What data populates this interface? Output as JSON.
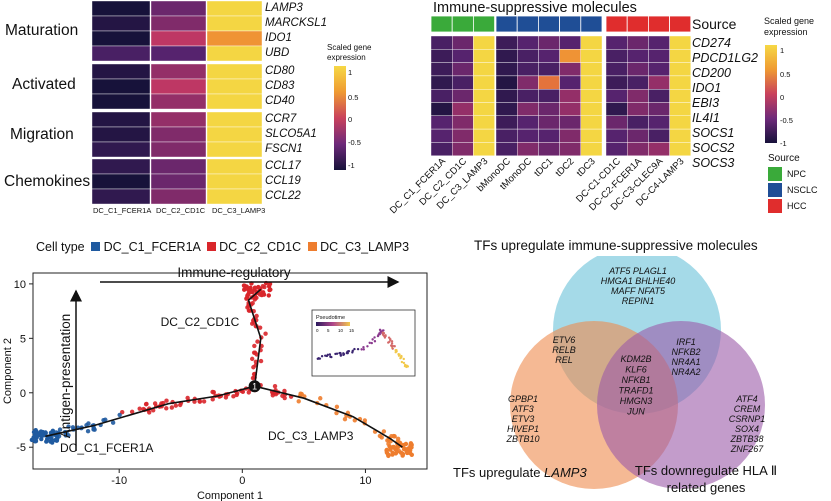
{
  "heatmap_left": {
    "groups": [
      {
        "label": "Maturation",
        "genes": [
          "LAMP3",
          "MARCKSL1",
          "IDO1",
          "UBD"
        ]
      },
      {
        "label": "Activated",
        "genes": [
          "CD80",
          "CD83",
          "CD40"
        ]
      },
      {
        "label": "Migration",
        "genes": [
          "CCR7",
          "SLCO5A1",
          "FSCN1"
        ]
      },
      {
        "label": "Chemokines",
        "genes": [
          "CCL17",
          "CCL19",
          "CCL22"
        ]
      }
    ],
    "columns": [
      "DC_C1_FCER1A",
      "DC_C2_CD1C",
      "DC_C3_LAMP3"
    ],
    "values": [
      [
        -1.0,
        -0.4,
        1.0
      ],
      [
        -0.9,
        -0.3,
        1.0
      ],
      [
        -1.0,
        0.0,
        0.6
      ],
      [
        -0.6,
        -0.5,
        1.0
      ],
      [
        -0.9,
        -0.2,
        1.0
      ],
      [
        -1.0,
        0.0,
        1.0
      ],
      [
        -1.0,
        -0.2,
        1.0
      ],
      [
        -0.9,
        -0.2,
        1.0
      ],
      [
        -0.9,
        -0.3,
        1.0
      ],
      [
        -0.8,
        -0.3,
        1.0
      ],
      [
        -0.8,
        -0.4,
        1.0
      ],
      [
        -1.0,
        -0.4,
        1.0
      ],
      [
        -0.8,
        -0.3,
        1.0
      ]
    ]
  },
  "legend_left": {
    "title": "Scaled gene expression",
    "ticks": [
      "1",
      "0.5",
      "0",
      "-0.5",
      "-1"
    ]
  },
  "heatmap_right": {
    "title": "Immune-suppressive molecules",
    "source_label": "Source",
    "genes": [
      "CD274",
      "PDCD1LG2",
      "CD200",
      "IDO1",
      "EBI3",
      "IL4I1",
      "SOCS1",
      "SOCS2",
      "SOCS3"
    ],
    "columns": [
      "DC_C1_FCER1A",
      "DC_C2_CD1C",
      "DC_C3_LAMP3",
      "bMonoDC",
      "tMonoDC",
      "tDC1",
      "tDC2",
      "tDC3",
      "DC-C1-CD1C",
      "DC-C2-FCER1A",
      "DC-C3-CLEC9A",
      "DC-C4-LAMP3"
    ],
    "column_sources": [
      "NPC",
      "NPC",
      "NPC",
      "NSCLC",
      "NSCLC",
      "NSCLC",
      "NSCLC",
      "NSCLC",
      "HCC",
      "HCC",
      "HCC",
      "HCC"
    ],
    "values": [
      [
        -0.6,
        -0.4,
        1.0,
        -0.7,
        -0.5,
        -0.4,
        -0.5,
        1.0,
        -0.5,
        -0.4,
        -0.5,
        1.0
      ],
      [
        -0.7,
        -0.5,
        1.0,
        -0.8,
        -0.6,
        -0.5,
        0.6,
        1.0,
        -0.6,
        -0.5,
        -0.5,
        1.0
      ],
      [
        -0.7,
        -0.4,
        1.0,
        -0.8,
        -0.6,
        -0.6,
        -0.3,
        1.0,
        -0.6,
        -0.4,
        -0.5,
        1.0
      ],
      [
        -0.8,
        -0.6,
        1.0,
        -0.9,
        -0.3,
        0.4,
        -0.5,
        1.0,
        -0.7,
        -0.6,
        -0.2,
        1.0
      ],
      [
        -0.6,
        -0.4,
        1.0,
        -0.8,
        -0.6,
        -0.6,
        -0.2,
        1.0,
        -0.5,
        -0.3,
        -0.6,
        1.0
      ],
      [
        -0.9,
        -0.2,
        1.0,
        -0.8,
        -0.3,
        -0.4,
        -0.2,
        1.0,
        -0.8,
        -0.3,
        -0.4,
        1.0
      ],
      [
        -0.5,
        -0.3,
        1.0,
        -0.7,
        -0.5,
        -0.4,
        -0.4,
        1.0,
        -0.4,
        -0.6,
        -0.5,
        1.0
      ],
      [
        -0.5,
        -0.3,
        1.0,
        -0.6,
        -0.5,
        -0.5,
        -0.3,
        1.0,
        -0.5,
        -0.4,
        -0.6,
        1.0
      ],
      [
        -0.6,
        -0.3,
        1.0,
        -0.6,
        -0.3,
        -0.4,
        -0.3,
        1.0,
        -0.5,
        -0.3,
        -0.2,
        1.0
      ]
    ]
  },
  "legend_right": {
    "title": "Scaled gene expression",
    "ticks": [
      "1",
      "0.5",
      "0",
      "-0.5",
      "-1"
    ],
    "source_title": "Source",
    "sources": [
      {
        "name": "NPC",
        "color": "#3aaa3a"
      },
      {
        "name": "NSCLC",
        "color": "#1f4e96"
      },
      {
        "name": "HCC",
        "color": "#e02d2d"
      }
    ]
  },
  "trajectory": {
    "legend_title": "Cell type",
    "cell_types": [
      {
        "name": "DC_C1_FCER1A",
        "color": "#1f5aa0"
      },
      {
        "name": "DC_C2_CD1C",
        "color": "#d9262b"
      },
      {
        "name": "DC_C3_LAMP3",
        "color": "#ee7d2e"
      }
    ],
    "xlabel": "Component 1",
    "ylabel": "Component 2",
    "xticks": [
      "-10",
      "0",
      "10"
    ],
    "yticks": [
      "10",
      "5",
      "0",
      "-5"
    ],
    "xlim": [
      -17,
      15
    ],
    "ylim": [
      -7,
      11
    ],
    "arrow_horizontal": "Immune-regulatory",
    "arrow_vertical": "Antigen-presentation",
    "branch_point": "1",
    "cluster_labels": [
      "DC_C2_CD1C",
      "DC_C1_FCER1A",
      "DC_C3_LAMP3"
    ],
    "inset": {
      "label": "Pseudotime",
      "ticks": [
        "0",
        "5",
        "10",
        "15"
      ]
    }
  },
  "venn": {
    "title_top": "TFs upregulate immune-suppressive molecules",
    "label_left": "TFs upregulate",
    "label_left_gene": "LAMP3",
    "label_right_line1": "TFs downregulate HLA Ⅱ",
    "label_right_line2": "related genes",
    "top_only": [
      "ATF5",
      "PLAGL1",
      "HMGA1",
      "BHLHE40",
      "MAFF",
      "NFAT5",
      "REPIN1"
    ],
    "top_left": [
      "ETV6",
      "RELB",
      "REL"
    ],
    "top_right": [
      "IRF1",
      "NFKB2",
      "NR4A1",
      "NR4A2"
    ],
    "center": [
      "KDM2B",
      "KLF6",
      "NFKB1",
      "TRAFD1",
      "HMGN3",
      "JUN"
    ],
    "left_only": [
      "GPBP1",
      "ATF3",
      "ETV3",
      "HIVEP1",
      "ZBTB10"
    ],
    "right_only": [
      "ATF4",
      "CREM",
      "CSRNP1",
      "SOX4",
      "ZBTB38",
      "ZNF267"
    ],
    "colors": {
      "top": "#5bbcd6",
      "left": "#ef8a4c",
      "right": "#9b5aa8"
    }
  }
}
